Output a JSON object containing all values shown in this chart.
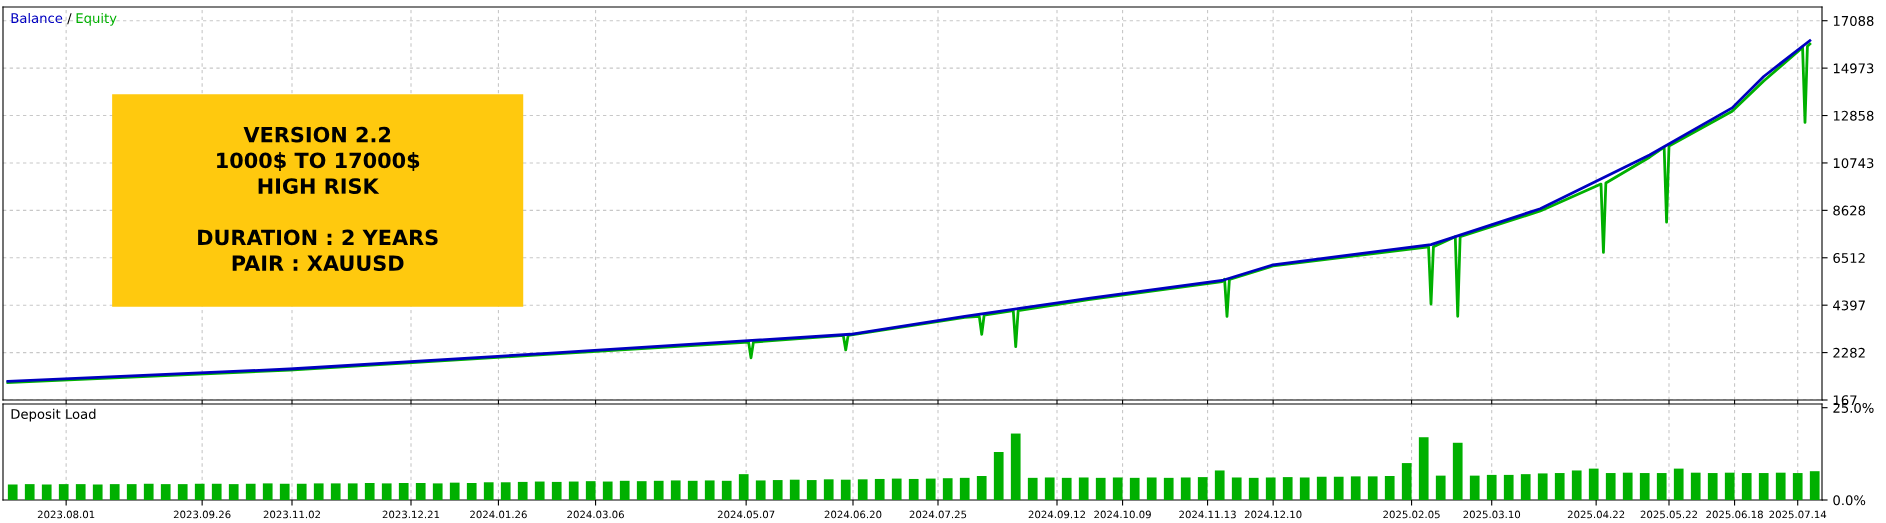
{
  "chart_data": [
    {
      "type": "line",
      "xlim": [
        "2023-07-06",
        "2025-07-24"
      ],
      "ylim": [
        167,
        17700
      ],
      "xticks": [
        {
          "value": "2023-08-01",
          "label": null
        },
        {
          "value": "2023-09-26",
          "label": null
        },
        {
          "value": "2023-11-02",
          "label": null
        },
        {
          "value": "2023-12-21",
          "label": null
        },
        {
          "value": "2024-01-26",
          "label": null
        },
        {
          "value": "2024-03-06",
          "label": null
        },
        {
          "value": "2024-05-07",
          "label": null
        },
        {
          "value": "2024-06-20",
          "label": null
        },
        {
          "value": "2024-07-25",
          "label": null
        },
        {
          "value": "2024-09-12",
          "label": null
        },
        {
          "value": "2024-10-09",
          "label": null
        },
        {
          "value": "2024-11-13",
          "label": null
        },
        {
          "value": "2024-12-10",
          "label": null
        },
        {
          "value": "2025-02-05",
          "label": null
        },
        {
          "value": "2025-03-10",
          "label": null
        },
        {
          "value": "2025-04-22",
          "label": null
        },
        {
          "value": "2025-05-22",
          "label": null
        },
        {
          "value": "2025-06-18",
          "label": null
        },
        {
          "value": "2025-07-14",
          "label": null
        }
      ],
      "yticks": [
        167,
        2282,
        4397,
        6512,
        8628,
        10743,
        12858,
        14973,
        17088
      ],
      "tick_labels": "y",
      "grid": true,
      "legend": "top left",
      "series": [
        {
          "name": "Balance",
          "color": "#0000c0",
          "x": [
            "2023-07-08",
            "2023-11-01",
            "2024-02-15",
            "2024-06-19",
            "2024-08-05",
            "2024-09-25",
            "2024-11-19",
            "2024-12-10",
            "2025-02-13",
            "2025-03-30",
            "2025-05-14",
            "2025-06-17",
            "2025-06-30",
            "2025-07-19"
          ],
          "values": [
            1000,
            1550,
            2250,
            3100,
            3900,
            4700,
            5500,
            6200,
            7100,
            8700,
            11100,
            13200,
            14600,
            16200
          ]
        },
        {
          "name": "Equity",
          "color": "#00b000",
          "x": [
            "2023-07-08",
            "2023-11-01",
            "2024-02-15",
            "2024-05-08",
            "2024-05-09",
            "2024-05-10",
            "2024-06-16",
            "2024-06-17",
            "2024-06-18",
            "2024-08-05",
            "2024-08-11",
            "2024-08-12",
            "2024-08-13",
            "2024-08-25",
            "2024-08-26",
            "2024-08-27",
            "2024-09-25",
            "2024-11-19",
            "2024-11-20",
            "2024-11-21",
            "2024-11-22",
            "2024-12-10",
            "2025-02-12",
            "2025-02-13",
            "2025-02-14",
            "2025-02-23",
            "2025-02-24",
            "2025-02-25",
            "2025-03-30",
            "2025-04-24",
            "2025-04-25",
            "2025-04-26",
            "2025-05-14",
            "2025-05-20",
            "2025-05-21",
            "2025-05-22",
            "2025-06-17",
            "2025-06-30",
            "2025-07-16",
            "2025-07-17",
            "2025-07-18",
            "2025-07-19"
          ],
          "values": [
            950,
            1500,
            2200,
            2750,
            2050,
            2750,
            3050,
            2400,
            3050,
            3850,
            3900,
            3100,
            3950,
            4150,
            2550,
            4150,
            4650,
            5450,
            5550,
            3900,
            5550,
            6150,
            7000,
            4450,
            7000,
            7450,
            3900,
            7450,
            8600,
            9800,
            6750,
            9850,
            11000,
            11450,
            8100,
            11500,
            13050,
            14400,
            15900,
            12550,
            15950,
            16050
          ]
        }
      ],
      "annotations": [
        "VERSION 2.2\n1000$ TO 17000$\nHIGH RISK\n\nDURATION : 2 YEARS\nPAIR : XAUUSD",
        "/"
      ]
    },
    {
      "type": "bar",
      "title": "Deposit Load",
      "xlim": [
        "2023-07-06",
        "2025-07-24"
      ],
      "ylim": [
        0,
        26
      ],
      "xticks": [
        {
          "value": "2023-08-01",
          "label": "2023.08.01"
        },
        {
          "value": "2023-09-26",
          "label": "2023.09.26"
        },
        {
          "value": "2023-11-02",
          "label": "2023.11.02"
        },
        {
          "value": "2023-12-21",
          "label": "2023.12.21"
        },
        {
          "value": "2024-01-26",
          "label": "2024.01.26"
        },
        {
          "value": "2024-03-06",
          "label": "2024.03.06"
        },
        {
          "value": "2024-05-07",
          "label": "2024.05.07"
        },
        {
          "value": "2024-06-20",
          "label": "2024.06.20"
        },
        {
          "value": "2024-07-25",
          "label": "2024.07.25"
        },
        {
          "value": "2024-09-12",
          "label": "2024.09.12"
        },
        {
          "value": "2024-10-09",
          "label": "2024.10.09"
        },
        {
          "value": "2024-11-13",
          "label": "2024.11.13"
        },
        {
          "value": "2024-12-10",
          "label": "2024.12.10"
        },
        {
          "value": "2025-02-05",
          "label": "2025.02.05"
        },
        {
          "value": "2025-03-10",
          "label": "2025.03.10"
        },
        {
          "value": "2025-04-22",
          "label": "2025.04.22"
        },
        {
          "value": "2025-05-22",
          "label": "2025.05.22"
        },
        {
          "value": "2025-06-18",
          "label": "2025.06.18"
        },
        {
          "value": "2025-07-14",
          "label": "2025.07.14"
        }
      ],
      "yticks": [
        {
          "value": 0,
          "label": "0.0%"
        },
        {
          "value": 25,
          "label": "25.0%"
        }
      ],
      "grid": "x",
      "x": [
        "2023-07-10",
        "2023-07-17",
        "2023-07-24",
        "2023-07-31",
        "2023-08-07",
        "2023-08-14",
        "2023-08-21",
        "2023-08-28",
        "2023-09-04",
        "2023-09-11",
        "2023-09-18",
        "2023-09-25",
        "2023-10-02",
        "2023-10-09",
        "2023-10-16",
        "2023-10-23",
        "2023-10-30",
        "2023-11-06",
        "2023-11-13",
        "2023-11-20",
        "2023-11-27",
        "2023-12-04",
        "2023-12-11",
        "2023-12-18",
        "2023-12-25",
        "2024-01-01",
        "2024-01-08",
        "2024-01-15",
        "2024-01-22",
        "2024-01-29",
        "2024-02-05",
        "2024-02-12",
        "2024-02-19",
        "2024-02-26",
        "2024-03-04",
        "2024-03-11",
        "2024-03-18",
        "2024-03-25",
        "2024-04-01",
        "2024-04-08",
        "2024-04-15",
        "2024-04-22",
        "2024-04-29",
        "2024-05-06",
        "2024-05-13",
        "2024-05-20",
        "2024-05-27",
        "2024-06-03",
        "2024-06-10",
        "2024-06-17",
        "2024-06-24",
        "2024-07-01",
        "2024-07-08",
        "2024-07-15",
        "2024-07-22",
        "2024-07-29",
        "2024-08-05",
        "2024-08-12",
        "2024-08-19",
        "2024-08-26",
        "2024-09-02",
        "2024-09-09",
        "2024-09-16",
        "2024-09-23",
        "2024-09-30",
        "2024-10-07",
        "2024-10-14",
        "2024-10-21",
        "2024-10-28",
        "2024-11-04",
        "2024-11-11",
        "2024-11-18",
        "2024-11-25",
        "2024-12-02",
        "2024-12-09",
        "2024-12-16",
        "2024-12-23",
        "2024-12-30",
        "2025-01-06",
        "2025-01-13",
        "2025-01-20",
        "2025-01-27",
        "2025-02-03",
        "2025-02-10",
        "2025-02-17",
        "2025-02-24",
        "2025-03-03",
        "2025-03-10",
        "2025-03-17",
        "2025-03-24",
        "2025-03-31",
        "2025-04-07",
        "2025-04-14",
        "2025-04-21",
        "2025-04-28",
        "2025-05-05",
        "2025-05-12",
        "2025-05-19",
        "2025-05-26",
        "2025-06-02",
        "2025-06-09",
        "2025-06-16",
        "2025-06-23",
        "2025-06-30",
        "2025-07-07",
        "2025-07-14",
        "2025-07-21"
      ],
      "series": [
        {
          "color": "#00b000",
          "values": [
            4.2,
            4.3,
            4.2,
            4.3,
            4.3,
            4.2,
            4.3,
            4.3,
            4.4,
            4.3,
            4.3,
            4.4,
            4.4,
            4.3,
            4.4,
            4.5,
            4.4,
            4.4,
            4.5,
            4.5,
            4.5,
            4.6,
            4.5,
            4.6,
            4.6,
            4.5,
            4.7,
            4.6,
            4.8,
            4.8,
            4.9,
            5.0,
            4.9,
            5.0,
            5.1,
            5.0,
            5.2,
            5.1,
            5.2,
            5.3,
            5.2,
            5.3,
            5.2,
            7.0,
            5.3,
            5.4,
            5.5,
            5.4,
            5.6,
            5.5,
            5.6,
            5.7,
            5.8,
            5.7,
            5.8,
            5.9,
            6.0,
            6.5,
            13.0,
            18.0,
            6.0,
            6.1,
            6.0,
            6.1,
            6.0,
            6.1,
            6.0,
            6.1,
            6.0,
            6.1,
            6.2,
            8.0,
            6.1,
            6.0,
            6.1,
            6.2,
            6.1,
            6.3,
            6.3,
            6.4,
            6.4,
            6.5,
            10.0,
            17.0,
            6.6,
            15.5,
            6.6,
            6.8,
            6.8,
            7.0,
            7.2,
            7.3,
            8.0,
            8.5,
            7.3,
            7.4,
            7.3,
            7.3,
            8.5,
            7.4,
            7.3,
            7.4,
            7.3,
            7.3,
            7.4,
            7.3,
            7.8
          ]
        }
      ]
    }
  ]
}
